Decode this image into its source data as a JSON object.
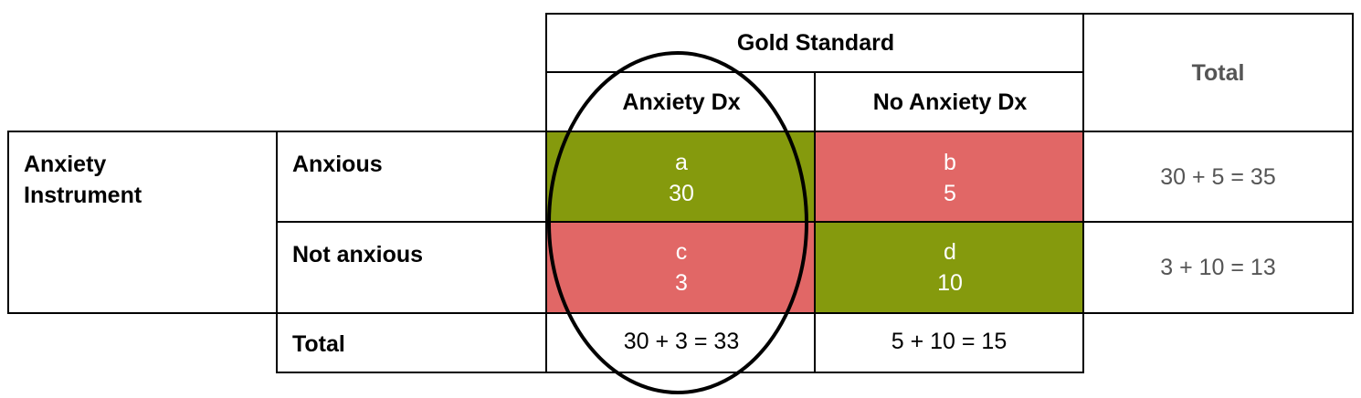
{
  "table": {
    "header": {
      "gold_standard": "Gold Standard",
      "total": "Total",
      "anxiety_dx": "Anxiety Dx",
      "no_anxiety_dx": "No Anxiety Dx"
    },
    "row_group_label": "Anxiety\nInstrument",
    "rows": [
      {
        "label": "Anxious",
        "cells": [
          {
            "letter": "a",
            "value": "30",
            "color": "#859a0d"
          },
          {
            "letter": "b",
            "value": "5",
            "color": "#e16766"
          }
        ],
        "total": "30 + 5 = 35"
      },
      {
        "label": "Not anxious",
        "cells": [
          {
            "letter": "c",
            "value": "3",
            "color": "#e16766"
          },
          {
            "letter": "d",
            "value": "10",
            "color": "#859a0d"
          }
        ],
        "total": "3 + 10 = 13"
      }
    ],
    "total_row": {
      "label": "Total",
      "anxiety_dx": "30 + 3 = 33",
      "no_anxiety_dx": "5 + 10 = 15"
    }
  },
  "colors": {
    "true_result": "#859a0d",
    "false_result": "#e16766",
    "total_text": "#555555"
  }
}
